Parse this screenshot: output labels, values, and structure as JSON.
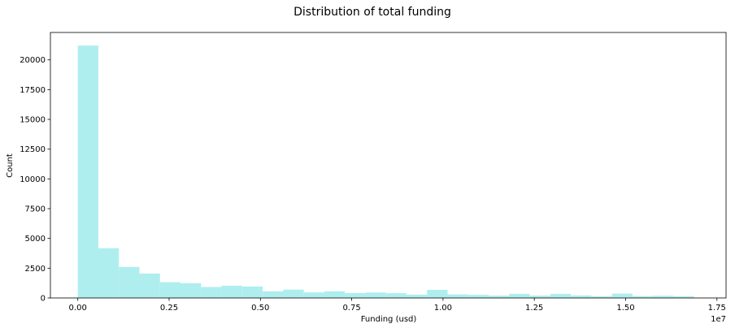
{
  "chart_data": {
    "type": "bar",
    "title": "Distribution of total funding",
    "xlabel": "Funding (usd)",
    "ylabel": "Count",
    "x_offset_label": "1e7",
    "xlim": [
      -0.075,
      1.775
    ],
    "ylim": [
      0,
      22300
    ],
    "bin_start": 0.0,
    "bin_width": 0.05625,
    "bar_color": "#afeeee",
    "grid": false,
    "x_ticks": [
      0.0,
      0.25,
      0.5,
      0.75,
      1.0,
      1.25,
      1.5,
      1.75
    ],
    "x_tick_labels": [
      "0.00",
      "0.25",
      "0.50",
      "0.75",
      "1.00",
      "1.25",
      "1.50",
      "1.75"
    ],
    "y_ticks": [
      0,
      2500,
      5000,
      7500,
      10000,
      12500,
      15000,
      17500,
      20000
    ],
    "y_tick_labels": [
      "0",
      "2500",
      "5000",
      "7500",
      "10000",
      "12500",
      "15000",
      "17500",
      "20000"
    ],
    "values": [
      21200,
      4180,
      2600,
      2050,
      1320,
      1240,
      920,
      1030,
      960,
      560,
      700,
      470,
      560,
      410,
      460,
      400,
      280,
      680,
      300,
      260,
      200,
      350,
      200,
      350,
      210,
      140,
      370,
      160,
      190,
      140
    ]
  }
}
